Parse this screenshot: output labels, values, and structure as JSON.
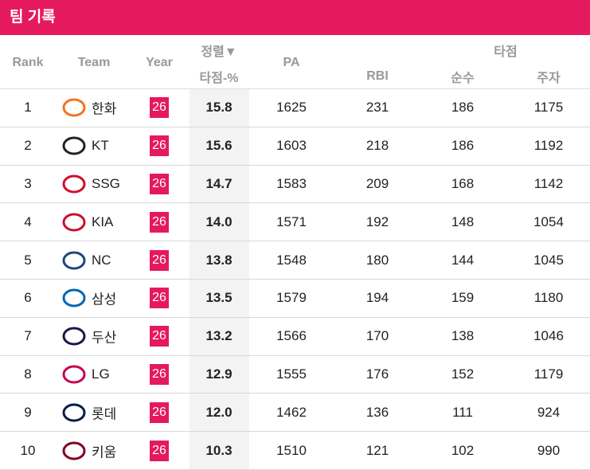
{
  "header": {
    "title": "팀 기록"
  },
  "table": {
    "columns": {
      "rank": "Rank",
      "team": "Team",
      "year": "Year",
      "sort": "정렬▼",
      "rbi_pct": "타점-%",
      "pa": "PA",
      "rbi_group": "타점",
      "rbi": "RBI",
      "pure": "순수",
      "runner": "주자"
    },
    "rows": [
      [
        "1",
        "한화",
        "26",
        "15.8",
        "1625",
        "231",
        "186",
        "1175"
      ],
      [
        "2",
        "KT",
        "26",
        "15.6",
        "1603",
        "218",
        "186",
        "1192"
      ],
      [
        "3",
        "SSG",
        "26",
        "14.7",
        "1583",
        "209",
        "168",
        "1142"
      ],
      [
        "4",
        "KIA",
        "26",
        "14.0",
        "1571",
        "192",
        "148",
        "1054"
      ],
      [
        "5",
        "NC",
        "26",
        "13.8",
        "1548",
        "180",
        "144",
        "1045"
      ],
      [
        "6",
        "삼성",
        "26",
        "13.5",
        "1579",
        "194",
        "159",
        "1180"
      ],
      [
        "7",
        "두산",
        "26",
        "13.2",
        "1566",
        "170",
        "138",
        "1046"
      ],
      [
        "8",
        "LG",
        "26",
        "12.9",
        "1555",
        "176",
        "152",
        "1179"
      ],
      [
        "9",
        "롯데",
        "26",
        "12.0",
        "1462",
        "136",
        "111",
        "924"
      ],
      [
        "10",
        "키움",
        "26",
        "10.3",
        "1510",
        "121",
        "102",
        "990"
      ]
    ]
  }
}
